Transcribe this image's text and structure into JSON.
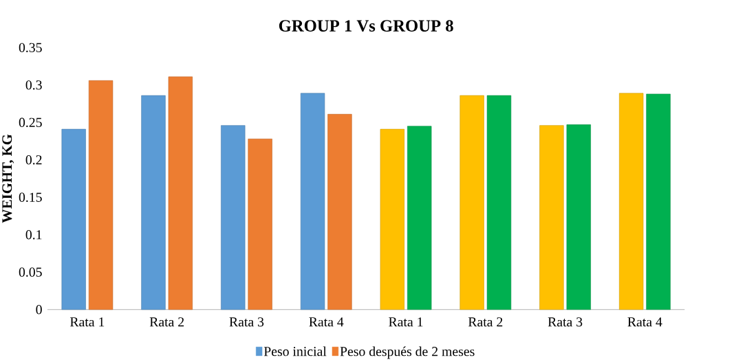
{
  "chart_data": {
    "type": "bar",
    "title": "GROUP 1 Vs GROUP 8",
    "ylabel": "WEIGHT, KG",
    "categories": [
      "Rata 1",
      "Rata 2",
      "Rata 3",
      "Rata 4",
      "Rata 1",
      "Rata 2",
      "Rata 3",
      "Rata 4"
    ],
    "series": [
      {
        "name": "Peso inicial",
        "color": "#5b9bd5",
        "colors": [
          "#5b9bd5",
          "#5b9bd5",
          "#5b9bd5",
          "#5b9bd5",
          "#ffc000",
          "#ffc000",
          "#ffc000",
          "#ffc000"
        ],
        "values": [
          0.241,
          0.286,
          0.246,
          0.289,
          0.241,
          0.286,
          0.246,
          0.289
        ]
      },
      {
        "name": "Peso después de 2 meses",
        "color": "#ed7d31",
        "colors": [
          "#ed7d31",
          "#ed7d31",
          "#ed7d31",
          "#ed7d31",
          "#00b050",
          "#00b050",
          "#00b050",
          "#00b050"
        ],
        "values": [
          0.306,
          0.311,
          0.228,
          0.261,
          0.245,
          0.286,
          0.247,
          0.288
        ]
      }
    ],
    "ylim": [
      0,
      0.35
    ],
    "yticks": [
      0,
      0.05,
      0.1,
      0.15,
      0.2,
      0.25,
      0.3,
      0.35
    ],
    "grid": false,
    "legend": "bottom"
  }
}
